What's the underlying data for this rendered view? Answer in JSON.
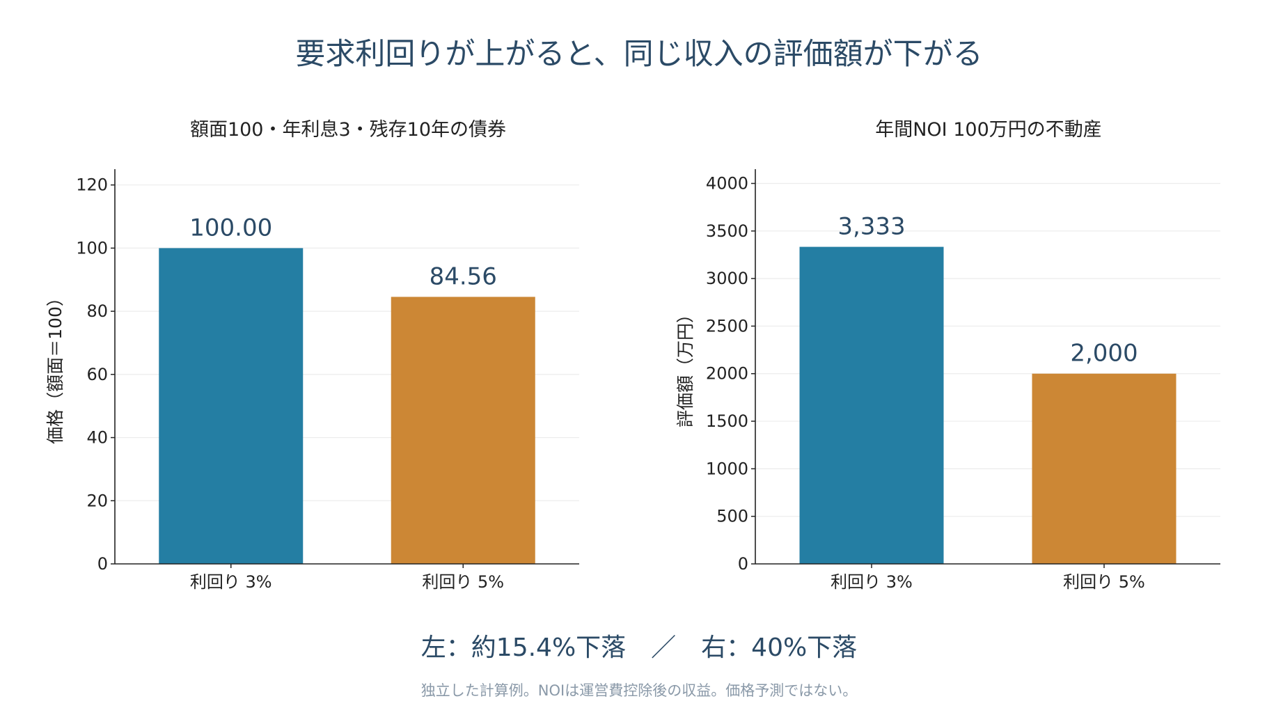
{
  "title": "要求利回りが上がると、同じ収入の評価額が下がる",
  "summary": "左：約15.4%下落　／　右：40%下落",
  "footnote": "独立した計算例。NOIは運営費控除後の収益。価格予測ではない。",
  "colors": {
    "title": "#2b4a66",
    "series_3pct": "#247ea3",
    "series_5pct": "#cc8735",
    "axis": "#222222",
    "grid": "#ececec",
    "footnote": "#8a99a8"
  },
  "chart_data": [
    {
      "type": "bar",
      "title": "額面100・年利息3・残存10年の債券",
      "ylabel": "価格（額面＝100）",
      "xlabel": "",
      "categories": [
        "利回り 3%",
        "利回り 5%"
      ],
      "values": [
        100.0,
        84.56
      ],
      "value_labels": [
        "100.00",
        "84.56"
      ],
      "ylim": [
        0,
        125
      ],
      "yticks": [
        0,
        20,
        40,
        60,
        80,
        100,
        120
      ],
      "grid": true
    },
    {
      "type": "bar",
      "title": "年間NOI 100万円の不動産",
      "ylabel": "評価額（万円）",
      "xlabel": "",
      "categories": [
        "利回り 3%",
        "利回り 5%"
      ],
      "values": [
        3333.33,
        2000
      ],
      "value_labels": [
        "3,333",
        "2,000"
      ],
      "ylim": [
        0,
        4150
      ],
      "yticks": [
        0,
        500,
        1000,
        1500,
        2000,
        2500,
        3000,
        3500,
        4000
      ],
      "grid": true
    }
  ]
}
